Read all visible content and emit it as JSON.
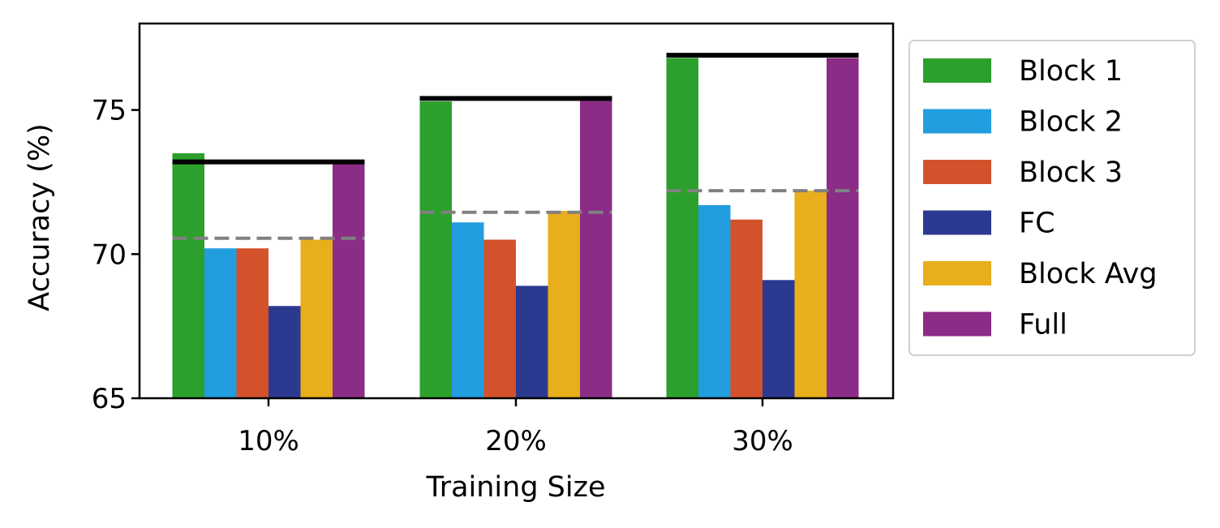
{
  "chart_data": {
    "type": "bar",
    "categories": [
      "10%",
      "20%",
      "30%"
    ],
    "series": [
      {
        "name": "Block 1",
        "color": "#2ca02c",
        "values": [
          73.5,
          75.3,
          76.8
        ]
      },
      {
        "name": "Block 2",
        "color": "#229ddf",
        "values": [
          70.2,
          71.1,
          71.7
        ]
      },
      {
        "name": "Block 3",
        "color": "#d4522b",
        "values": [
          70.2,
          70.5,
          71.2
        ]
      },
      {
        "name": "FC",
        "color": "#2b3990",
        "values": [
          68.2,
          68.9,
          69.1
        ]
      },
      {
        "name": "Block Avg",
        "color": "#e8ae1c",
        "values": [
          70.5,
          71.5,
          72.2
        ]
      },
      {
        "name": "Full",
        "color": "#8b2c86",
        "values": [
          73.2,
          75.4,
          76.8
        ]
      }
    ],
    "reference_lines": {
      "solid": {
        "color": "#000000",
        "values": [
          73.2,
          75.4,
          76.9
        ]
      },
      "dashed": {
        "color": "#808080",
        "values": [
          70.55,
          71.45,
          72.2
        ]
      }
    },
    "xlabel": "Training Size",
    "ylabel": "Accuracy (%)",
    "ylim": [
      65,
      78
    ],
    "yticks": [
      65,
      70,
      75
    ],
    "grid": false,
    "legend_position": "outside-right"
  }
}
